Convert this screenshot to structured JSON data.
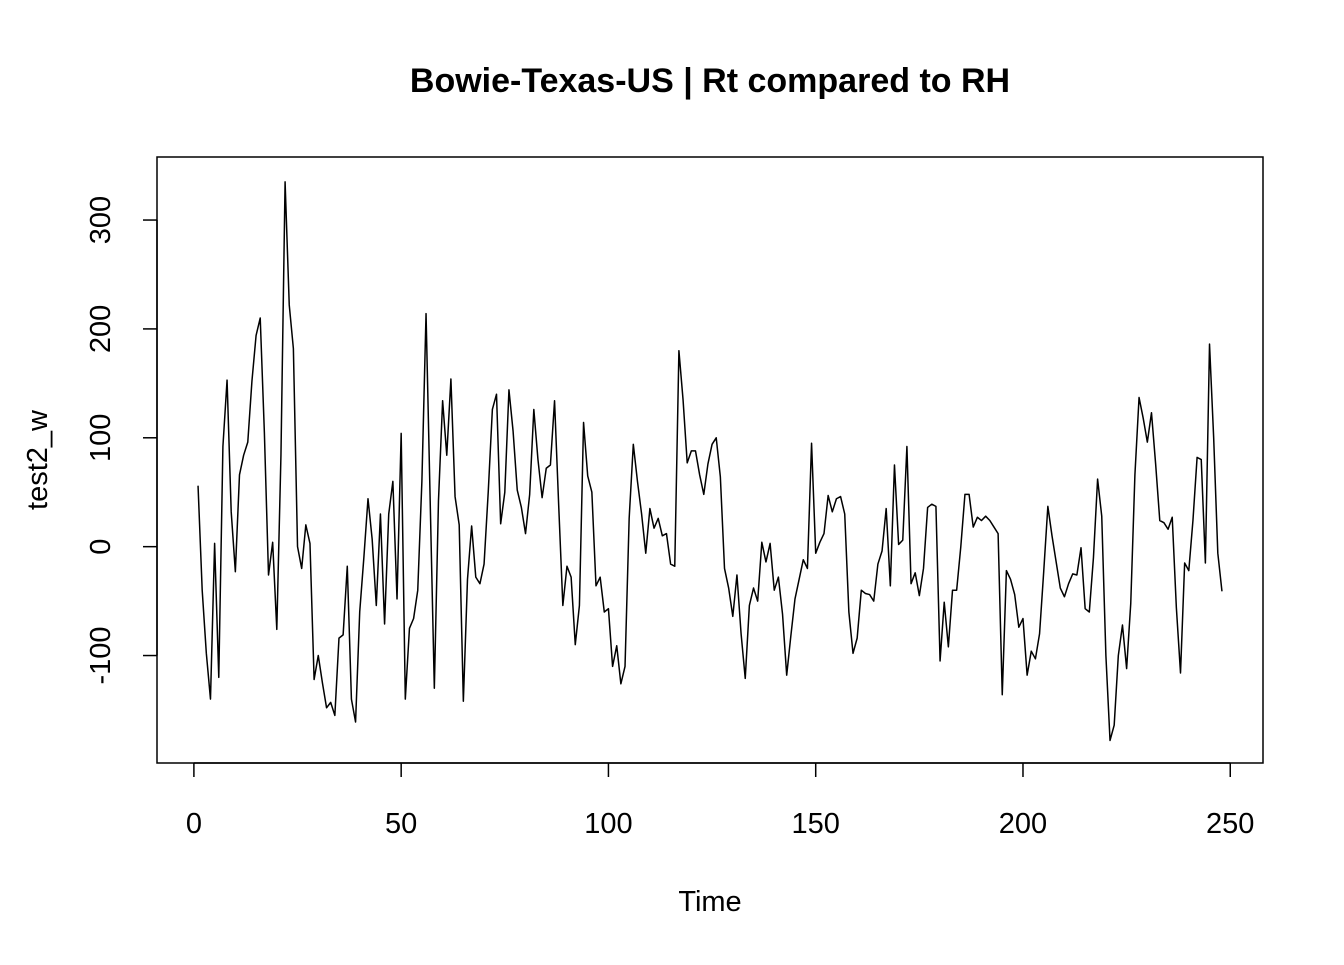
{
  "chart_data": {
    "type": "line",
    "title": "Bowie-Texas-US | Rt compared to RH",
    "xlabel": "Time",
    "ylabel": "test2_w",
    "xlim": [
      -8.9,
      257.9
    ],
    "ylim": [
      -198.7,
      357.9
    ],
    "xticks": [
      0,
      50,
      100,
      150,
      200,
      250
    ],
    "yticks": [
      -100,
      0,
      100,
      200,
      300
    ],
    "xtick_labels": [
      "0",
      "50",
      "100",
      "150",
      "200",
      "250"
    ],
    "ytick_labels": [
      "-100",
      "0",
      "100",
      "200",
      "300"
    ],
    "grid": false,
    "line_color": "#000000",
    "series": [
      {
        "values": [
          56,
          -40,
          -98,
          -140,
          3,
          -120,
          92,
          153,
          32,
          -23,
          66,
          84,
          96,
          152,
          194,
          210,
          105,
          -26,
          4,
          -76,
          84,
          335,
          222,
          182,
          0,
          -20,
          20,
          3,
          -122,
          -100,
          -125,
          -148,
          -143,
          -155,
          -84,
          -81,
          -18,
          -140,
          -161,
          -60,
          -10,
          44,
          7,
          -54,
          30,
          -71,
          30,
          60,
          -48,
          104,
          -140,
          -75,
          -66,
          -40,
          60,
          214,
          42,
          -130,
          42,
          134,
          84,
          154,
          46,
          20,
          -142,
          -30,
          19,
          -28,
          -34,
          -16,
          50,
          126,
          140,
          21,
          50,
          144,
          106,
          52,
          36,
          12,
          48,
          126,
          80,
          45,
          72,
          75,
          134,
          38,
          -54,
          -18,
          -28,
          -90,
          -54,
          114,
          65,
          50,
          -36,
          -28,
          -60,
          -57,
          -110,
          -91,
          -126,
          -110,
          26,
          94,
          60,
          30,
          -6,
          35,
          17,
          26,
          10,
          12,
          -16,
          -18,
          180,
          135,
          77,
          88,
          88,
          66,
          48,
          76,
          94,
          100,
          64,
          -20,
          -38,
          -64,
          -26,
          -80,
          -121,
          -54,
          -38,
          -50,
          4,
          -14,
          3,
          -40,
          -28,
          -62,
          -118,
          -82,
          -48,
          -30,
          -12,
          -20,
          95,
          -6,
          4,
          12,
          47,
          32,
          44,
          46,
          30,
          -60,
          -98,
          -84,
          -40,
          -43,
          -44,
          -50,
          -16,
          -4,
          35,
          -36,
          75,
          2,
          6,
          92,
          -34,
          -24,
          -45,
          -20,
          36,
          39,
          37,
          -105,
          -51,
          -92,
          -40,
          -40,
          0,
          48,
          48,
          18,
          27,
          24,
          28,
          24,
          18,
          12,
          -136,
          -22,
          -30,
          -44,
          -74,
          -66,
          -118,
          -96,
          -103,
          -80,
          -23,
          37,
          10,
          -14,
          -38,
          -46,
          -34,
          -25,
          -26,
          -1,
          -57,
          -60,
          -10,
          62,
          28,
          -100,
          -178,
          -164,
          -100,
          -72,
          -112,
          -52,
          66,
          137,
          118,
          96,
          123,
          76,
          24,
          22,
          16,
          27,
          -56,
          -116,
          -15,
          -22,
          24,
          82,
          80,
          -15,
          186,
          100,
          -6,
          -41
        ]
      }
    ]
  }
}
